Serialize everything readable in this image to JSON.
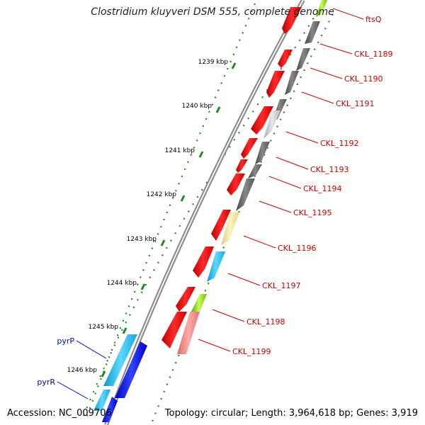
{
  "title": "Clostridium kluyveri DSM 555, complete genome",
  "footer": {
    "accession": "Accession: NC_009706",
    "topology": "Topology: circular; Length: 3,964,618 bp; Genes: 3,919"
  },
  "ticks": [
    {
      "kbp": 1239,
      "label": "1239 kbp"
    },
    {
      "kbp": 1240,
      "label": "1240 kbp"
    },
    {
      "kbp": 1241,
      "label": "1241 kbp"
    },
    {
      "kbp": 1242,
      "label": "1242 kbp"
    },
    {
      "kbp": 1243,
      "label": "1243 kbp"
    },
    {
      "kbp": 1244,
      "label": "1244 kbp"
    },
    {
      "kbp": 1245,
      "label": "1245 kbp"
    },
    {
      "kbp": 1246,
      "label": "1246 kbp"
    }
  ],
  "genes": [
    {
      "name": "ftsQ",
      "color": "#cc0000"
    },
    {
      "name": "CKL_1189",
      "color": "#cc0000"
    },
    {
      "name": "CKL_1190",
      "color": "#cc0000"
    },
    {
      "name": "CKL_1191",
      "color": "#cc0000"
    },
    {
      "name": "CKL_1192",
      "color": "#cc0000"
    },
    {
      "name": "CKL_1193",
      "color": "#cc0000"
    },
    {
      "name": "CKL_1194",
      "color": "#cc0000"
    },
    {
      "name": "CKL_1195",
      "color": "#cc0000"
    },
    {
      "name": "CKL_1196",
      "color": "#cc0000"
    },
    {
      "name": "CKL_1197",
      "color": "#cc0000"
    },
    {
      "name": "CKL_1198",
      "color": "#cc0000"
    },
    {
      "name": "CKL_1199",
      "color": "#cc0000"
    },
    {
      "name": "pyrP",
      "color": "#0000cc"
    },
    {
      "name": "pyrR",
      "color": "#0000cc"
    }
  ],
  "colors": {
    "cds": "#ff0000",
    "cog_dark": "#666666",
    "cog_light": "#cccccc",
    "cog_yellow": "#f5e6a0",
    "cog_cyan": "#22bbee",
    "cog_green": "#88cc22",
    "cog_pink": "#ee8888",
    "cds_blue": "#0000ee",
    "gc_dots": "#228822",
    "backbone": "#999999"
  }
}
